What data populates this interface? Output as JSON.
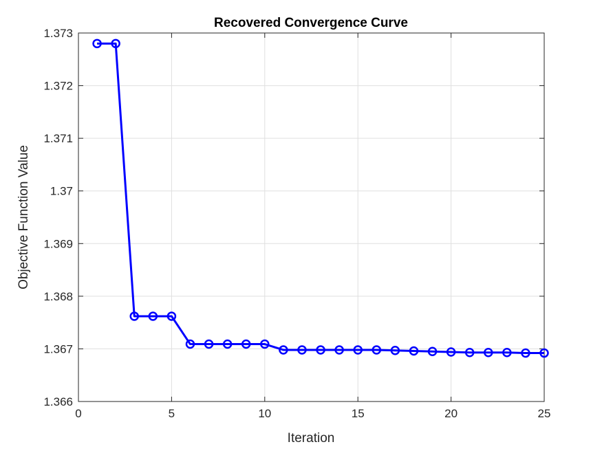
{
  "chart_data": {
    "type": "line",
    "title": "Recovered Convergence Curve",
    "xlabel": "Iteration",
    "ylabel": "Objective Function Value",
    "xlim": [
      0,
      25
    ],
    "ylim": [
      1.366,
      1.373
    ],
    "xticks": [
      0,
      5,
      10,
      15,
      20,
      25
    ],
    "xtick_labels": [
      "0",
      "5",
      "10",
      "15",
      "20",
      "25"
    ],
    "yticks": [
      1.366,
      1.367,
      1.368,
      1.369,
      1.37,
      1.371,
      1.372,
      1.373
    ],
    "ytick_labels": [
      "1.366",
      "1.367",
      "1.368",
      "1.369",
      "1.37",
      "1.371",
      "1.372",
      "1.373"
    ],
    "grid": true,
    "series": [
      {
        "color": "#0000ff",
        "marker": "circle",
        "x": [
          1,
          2,
          3,
          4,
          5,
          6,
          7,
          8,
          9,
          10,
          11,
          12,
          13,
          14,
          15,
          16,
          17,
          18,
          19,
          20,
          21,
          22,
          23,
          24,
          25
        ],
        "values": [
          1.3728,
          1.3728,
          1.36762,
          1.36762,
          1.36762,
          1.36709,
          1.36709,
          1.36709,
          1.36709,
          1.36709,
          1.36698,
          1.36698,
          1.36698,
          1.36698,
          1.36698,
          1.36698,
          1.36697,
          1.36696,
          1.36695,
          1.36694,
          1.36693,
          1.36693,
          1.36693,
          1.36692,
          1.36692
        ]
      }
    ]
  }
}
